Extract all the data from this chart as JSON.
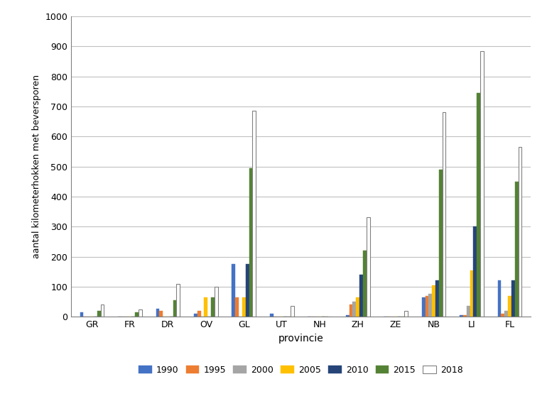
{
  "provinces": [
    "GR",
    "FR",
    "DR",
    "OV",
    "GL",
    "UT",
    "NH",
    "ZH",
    "ZE",
    "NB",
    "LI",
    "FL"
  ],
  "years": [
    "1990",
    "1995",
    "2000",
    "2005",
    "2010",
    "2015",
    "2018"
  ],
  "bar_colors": {
    "1990": "#4472c4",
    "1995": "#ed7d31",
    "2000": "#a5a5a5",
    "2005": "#ffc000",
    "2010": "#264478",
    "2015": "#548235",
    "2018": "#ffffff"
  },
  "bar_edge_colors": {
    "1990": "#4472c4",
    "1995": "#ed7d31",
    "2000": "#a5a5a5",
    "2005": "#ffc000",
    "2010": "#264478",
    "2015": "#548235",
    "2018": "#808080"
  },
  "data": {
    "1990": [
      15,
      0,
      27,
      10,
      175,
      10,
      0,
      5,
      0,
      65,
      5,
      120
    ],
    "1995": [
      0,
      0,
      20,
      20,
      65,
      0,
      0,
      40,
      0,
      70,
      5,
      10
    ],
    "2000": [
      0,
      0,
      0,
      0,
      0,
      0,
      0,
      50,
      0,
      75,
      35,
      20
    ],
    "2005": [
      0,
      0,
      0,
      65,
      65,
      0,
      0,
      65,
      0,
      105,
      155,
      70
    ],
    "2010": [
      0,
      0,
      0,
      0,
      175,
      0,
      0,
      140,
      0,
      120,
      300,
      120
    ],
    "2015": [
      20,
      15,
      55,
      65,
      495,
      0,
      0,
      220,
      0,
      490,
      745,
      450
    ],
    "2018": [
      40,
      25,
      110,
      100,
      685,
      35,
      0,
      330,
      20,
      680,
      885,
      565
    ]
  },
  "xlabel": "provincie",
  "ylabel": "aantal kilometerhokken met beversporen",
  "ylim": [
    0,
    1000
  ],
  "yticks": [
    0,
    100,
    200,
    300,
    400,
    500,
    600,
    700,
    800,
    900,
    1000
  ],
  "grid_color": "#c0c0c0",
  "bar_width": 0.09,
  "figsize": [
    7.7,
    5.72
  ],
  "dpi": 100
}
